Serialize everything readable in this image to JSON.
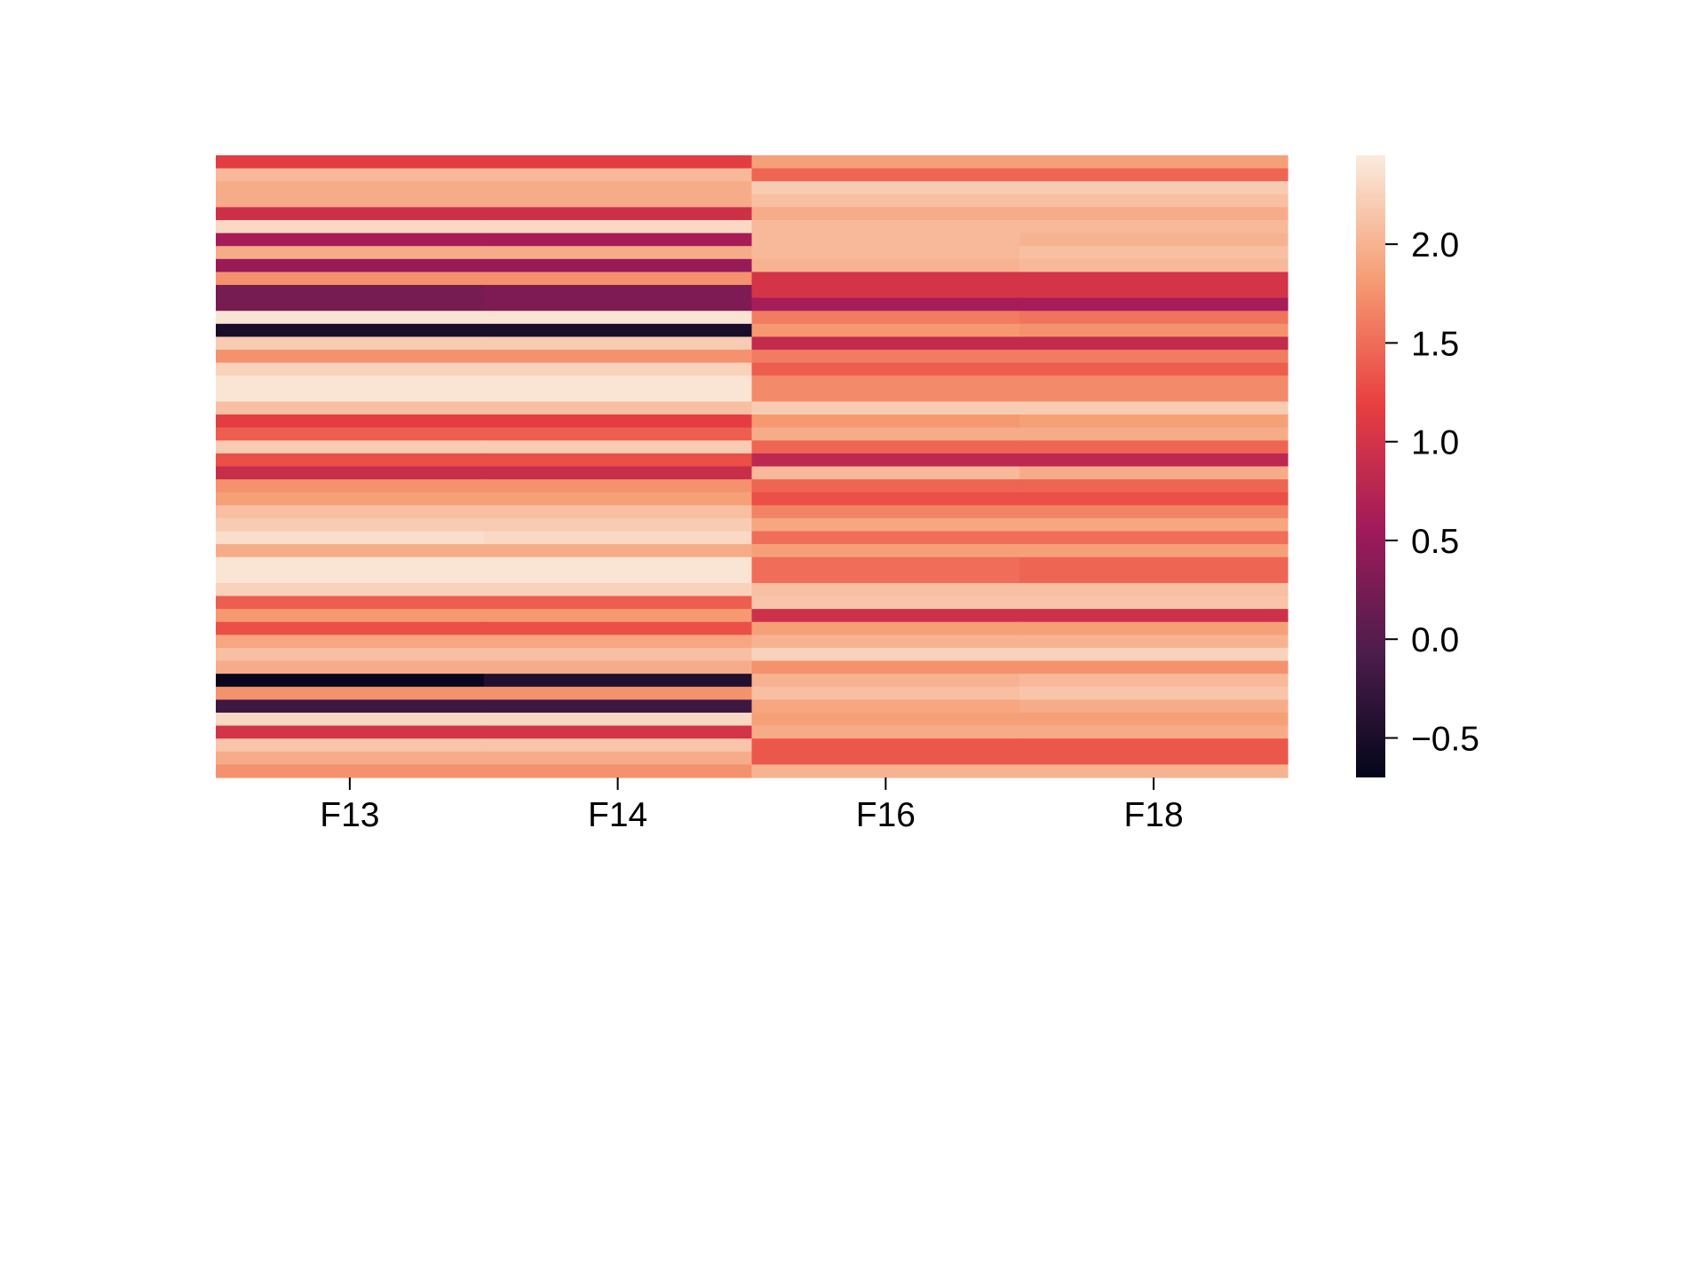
{
  "chart_data": {
    "type": "heatmap",
    "title": "",
    "xlabel": "",
    "ylabel": "",
    "columns": [
      "F13",
      "F14",
      "F16",
      "F18"
    ],
    "x_tick_labels": [
      "F13",
      "F14",
      "F16",
      "F18"
    ],
    "y_tick_labels": [],
    "colormap": "rocket",
    "colormap_stops": [
      "#03051a",
      "#4c1d4b",
      "#a11a5b",
      "#e83f3f",
      "#f69c73",
      "#faebdd"
    ],
    "vmin": -0.7,
    "vmax": 2.45,
    "colorbar": {
      "ticks": [
        -0.5,
        0.0,
        0.5,
        1.0,
        1.5,
        2.0
      ],
      "tick_labels": [
        "−0.5",
        "0.0",
        "0.5",
        "1.0",
        "1.5",
        "2.0"
      ],
      "placement": "right"
    },
    "rows": [
      [
        1.15,
        1.15,
        1.85,
        1.85
      ],
      [
        2.05,
        2.05,
        1.45,
        1.45
      ],
      [
        1.95,
        1.95,
        2.2,
        2.2
      ],
      [
        1.95,
        1.95,
        2.1,
        2.1
      ],
      [
        0.95,
        0.95,
        1.95,
        1.95
      ],
      [
        2.3,
        2.3,
        2.05,
        2.05
      ],
      [
        0.6,
        0.6,
        2.05,
        2.0
      ],
      [
        1.95,
        1.95,
        2.05,
        2.1
      ],
      [
        0.5,
        0.5,
        2.0,
        2.05
      ],
      [
        1.75,
        1.75,
        1.0,
        1.0
      ],
      [
        0.25,
        0.3,
        1.0,
        1.0
      ],
      [
        0.25,
        0.3,
        0.6,
        0.6
      ],
      [
        2.4,
        2.4,
        1.6,
        1.55
      ],
      [
        -0.5,
        -0.5,
        1.8,
        1.75
      ],
      [
        2.2,
        2.2,
        0.85,
        0.85
      ],
      [
        1.75,
        1.75,
        1.6,
        1.6
      ],
      [
        2.25,
        2.25,
        1.4,
        1.4
      ],
      [
        2.4,
        2.4,
        1.7,
        1.7
      ],
      [
        2.4,
        2.4,
        1.7,
        1.7
      ],
      [
        2.1,
        2.1,
        2.2,
        2.2
      ],
      [
        1.15,
        1.15,
        1.8,
        1.85
      ],
      [
        1.4,
        1.4,
        1.95,
        1.95
      ],
      [
        2.2,
        2.2,
        1.45,
        1.45
      ],
      [
        1.3,
        1.3,
        0.8,
        0.8
      ],
      [
        0.9,
        0.9,
        2.05,
        1.95
      ],
      [
        1.75,
        1.75,
        1.45,
        1.45
      ],
      [
        1.85,
        1.85,
        1.3,
        1.3
      ],
      [
        2.1,
        2.1,
        1.65,
        1.65
      ],
      [
        2.2,
        2.2,
        1.9,
        1.9
      ],
      [
        2.35,
        2.3,
        1.5,
        1.5
      ],
      [
        1.95,
        1.95,
        1.85,
        1.85
      ],
      [
        2.4,
        2.4,
        1.5,
        1.45
      ],
      [
        2.4,
        2.4,
        1.5,
        1.45
      ],
      [
        2.25,
        2.25,
        2.1,
        2.1
      ],
      [
        1.4,
        1.4,
        2.15,
        2.15
      ],
      [
        1.8,
        1.8,
        0.95,
        0.95
      ],
      [
        1.3,
        1.3,
        1.85,
        1.85
      ],
      [
        1.9,
        1.9,
        2.0,
        2.0
      ],
      [
        2.1,
        2.1,
        2.25,
        2.25
      ],
      [
        1.95,
        1.95,
        1.75,
        1.75
      ],
      [
        -0.65,
        -0.45,
        2.0,
        2.05
      ],
      [
        1.75,
        1.75,
        2.1,
        2.15
      ],
      [
        -0.2,
        -0.2,
        1.9,
        1.95
      ],
      [
        2.3,
        2.3,
        1.85,
        1.85
      ],
      [
        1.0,
        1.0,
        1.95,
        1.95
      ],
      [
        2.15,
        2.15,
        1.35,
        1.35
      ],
      [
        1.95,
        1.95,
        1.35,
        1.35
      ],
      [
        1.75,
        1.75,
        2.0,
        2.0
      ]
    ]
  }
}
